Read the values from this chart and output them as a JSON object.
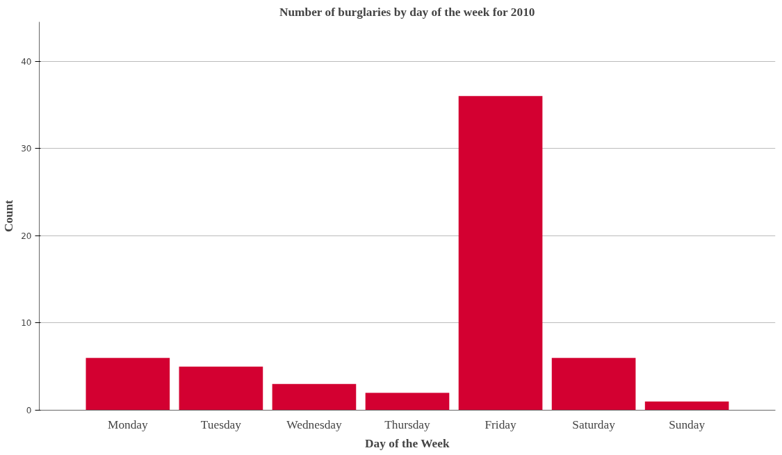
{
  "chart_data": {
    "type": "bar",
    "title": "Number of burglaries by day of the week for 2010",
    "xlabel": "Day of the Week",
    "ylabel": "Count",
    "categories": [
      "Monday",
      "Tuesday",
      "Wednesday",
      "Thursday",
      "Friday",
      "Saturday",
      "Sunday"
    ],
    "values": [
      6,
      5,
      3,
      2,
      36,
      6,
      1
    ],
    "color": "#d30031",
    "ylim": [
      0,
      44.5
    ],
    "yticks": [
      0,
      10,
      20,
      30,
      40
    ],
    "grid": "y"
  }
}
